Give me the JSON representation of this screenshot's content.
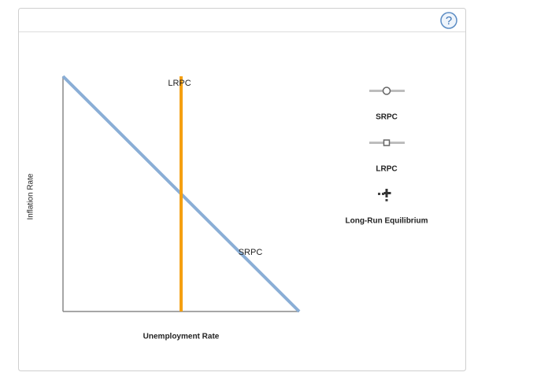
{
  "help": "?",
  "graph": {
    "y_axis_label": "Inflation Rate",
    "x_axis_label": "Unemployment Rate",
    "curves": [
      {
        "label": "LRPC"
      },
      {
        "label": "SRPC"
      }
    ]
  },
  "tools": [
    {
      "label": "SRPC"
    },
    {
      "label": "LRPC"
    },
    {
      "label": "Long-Run Equilibrium"
    }
  ]
}
